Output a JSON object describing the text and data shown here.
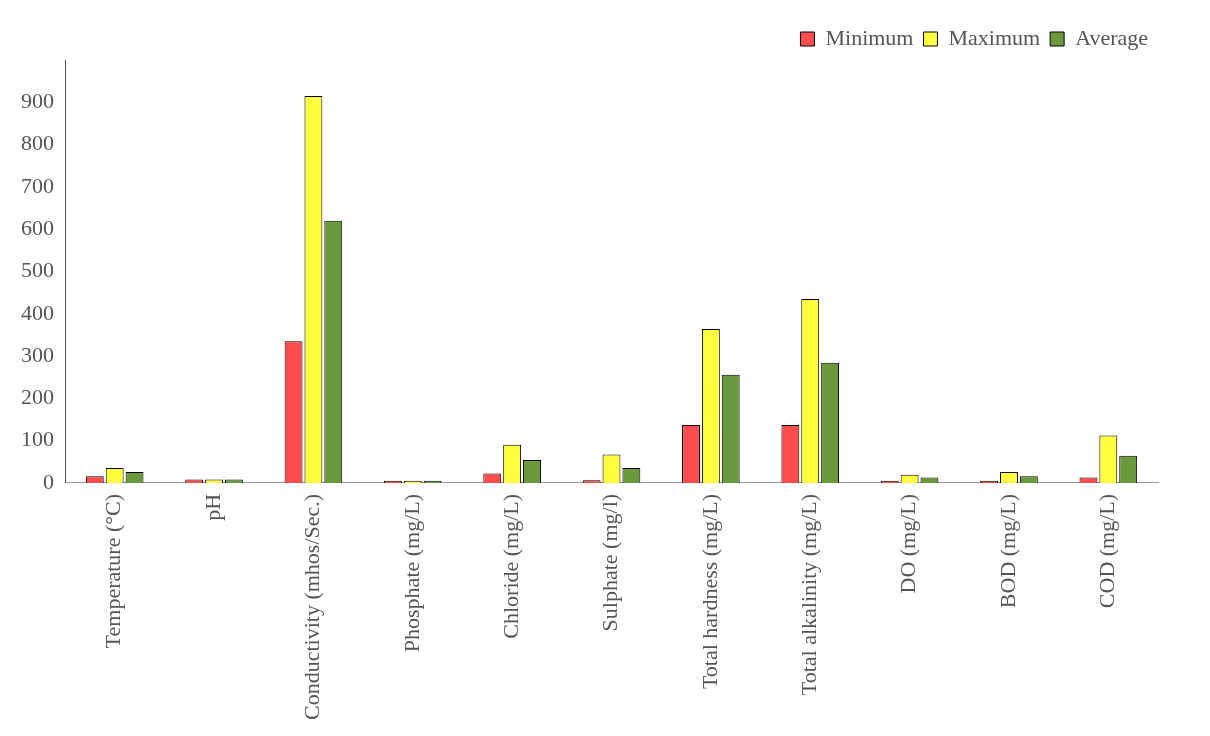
{
  "chart_data": {
    "type": "bar",
    "categories": [
      "Temperature (°C)",
      "pH",
      "Conductivity (mhos/Sec.)",
      "Phosphate (mg/L)",
      "Chloride (mg/L)",
      "Sulphate (mg/l)",
      "Total hardness (mg/L)",
      "Total alkalinity (mg/L)",
      "DO (mg/L)",
      "BOD (mg/L)",
      "COD (mg/L)"
    ],
    "series": [
      {
        "name": "Minimum",
        "color": "#ff4d4d",
        "values": [
          16,
          8,
          335,
          5,
          22,
          6,
          137,
          137,
          5,
          5,
          13
        ]
      },
      {
        "name": "Maximum",
        "color": "#ffff40",
        "values": [
          35,
          8,
          915,
          5,
          90,
          67,
          364,
          435,
          19,
          26,
          112
        ]
      },
      {
        "name": "Average",
        "color": "#6a9a3c",
        "values": [
          26,
          8,
          620,
          5,
          54,
          35,
          256,
          284,
          13,
          16,
          64
        ]
      }
    ],
    "ylim": [
      0,
      1000
    ],
    "yticks": [
      0,
      100,
      200,
      300,
      400,
      500,
      600,
      700,
      800,
      900
    ],
    "grid": false,
    "legend": "top right"
  }
}
